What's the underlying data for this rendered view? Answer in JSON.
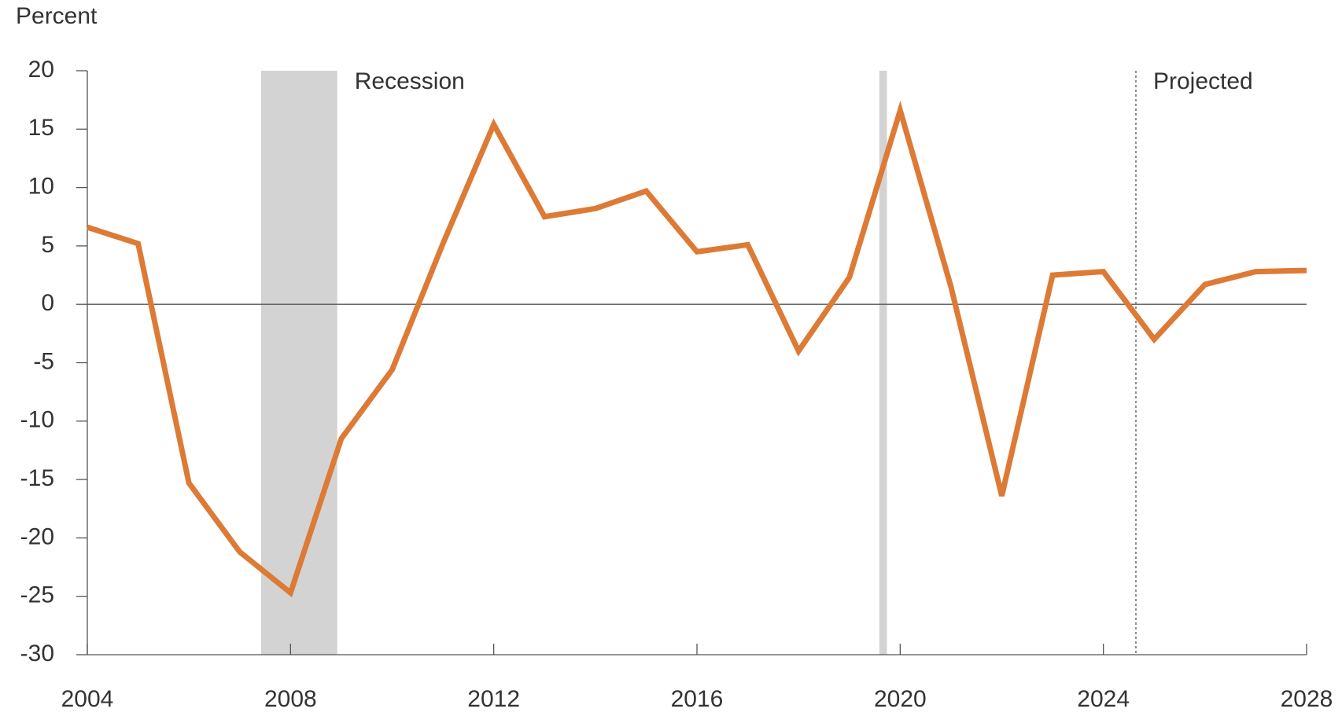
{
  "chart_data": {
    "type": "line",
    "y_axis_label": "Percent",
    "x": [
      2004,
      2005,
      2006,
      2007,
      2008,
      2009,
      2010,
      2011,
      2012,
      2013,
      2014,
      2015,
      2016,
      2017,
      2018,
      2019,
      2020,
      2021,
      2022,
      2023,
      2024,
      2025,
      2026,
      2027,
      2028
    ],
    "series": [
      {
        "color": "#dd7a35",
        "values": [
          6.6,
          5.2,
          -15.3,
          -21.2,
          -24.7,
          -11.5,
          -5.6,
          5.2,
          15.4,
          7.5,
          8.2,
          9.7,
          4.5,
          5.1,
          -4.0,
          2.3,
          16.6,
          1.5,
          -16.4,
          2.5,
          2.8,
          -3.0,
          1.7,
          2.8,
          2.9
        ]
      }
    ],
    "xlim": [
      2004,
      2028
    ],
    "xticks": [
      2004,
      2008,
      2012,
      2016,
      2020,
      2024,
      2028
    ],
    "ylim": [
      -30,
      20
    ],
    "yticks": [
      -30,
      -25,
      -20,
      -15,
      -10,
      -5,
      0,
      5,
      10,
      15,
      20
    ],
    "grid": false,
    "shaded_regions": [
      {
        "label": "Recession",
        "x": [
          2007.42,
          2008.92
        ],
        "color": "#d3d3d3"
      },
      {
        "x": [
          2019.59,
          2019.74
        ],
        "color": "#d3d3d3"
      }
    ],
    "projection": {
      "label": "Projected",
      "x": 2024.64
    }
  }
}
